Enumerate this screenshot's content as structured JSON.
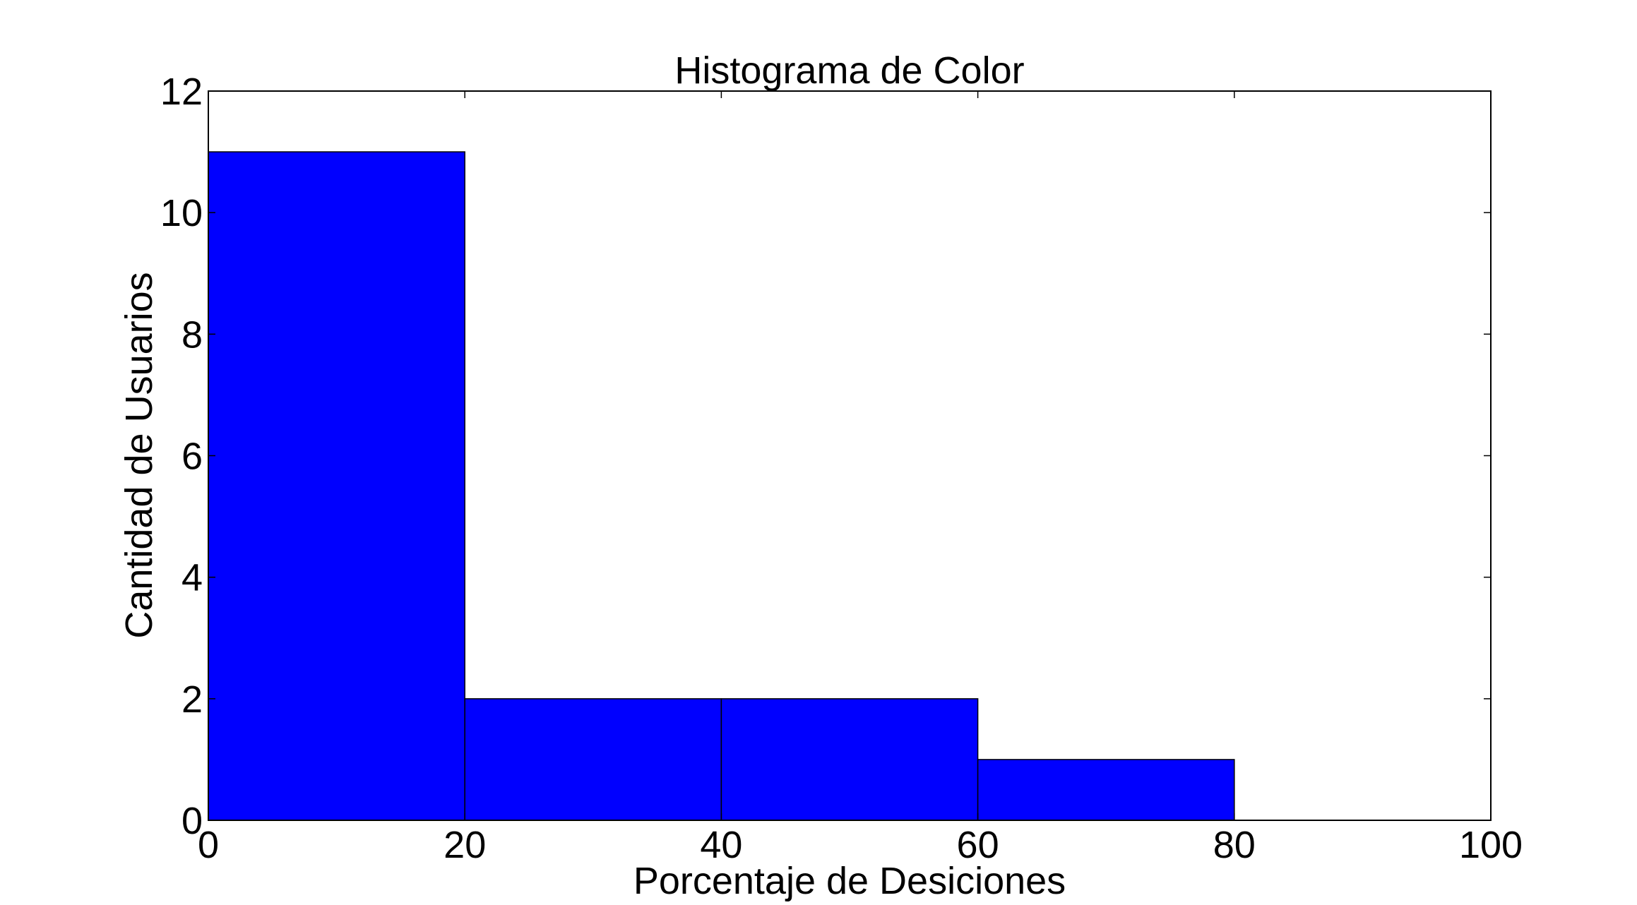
{
  "chart_data": {
    "type": "bar",
    "title": "Histograma de Color",
    "xlabel": "Porcentaje de Desiciones",
    "ylabel": "Cantidad de Usuarios",
    "xlim": [
      0,
      100
    ],
    "ylim": [
      0,
      12
    ],
    "xticks": [
      "0",
      "20",
      "40",
      "60",
      "80",
      "100"
    ],
    "yticks": [
      "0",
      "2",
      "4",
      "6",
      "8",
      "10",
      "12"
    ],
    "bins": [
      {
        "x0": 0,
        "x1": 20,
        "value": 11
      },
      {
        "x0": 20,
        "x1": 40,
        "value": 2
      },
      {
        "x0": 40,
        "x1": 60,
        "value": 2
      },
      {
        "x0": 60,
        "x1": 80,
        "value": 1
      }
    ],
    "bar_color": "#0000ff",
    "edge_color": "#000000",
    "grid": false,
    "legend": false
  }
}
